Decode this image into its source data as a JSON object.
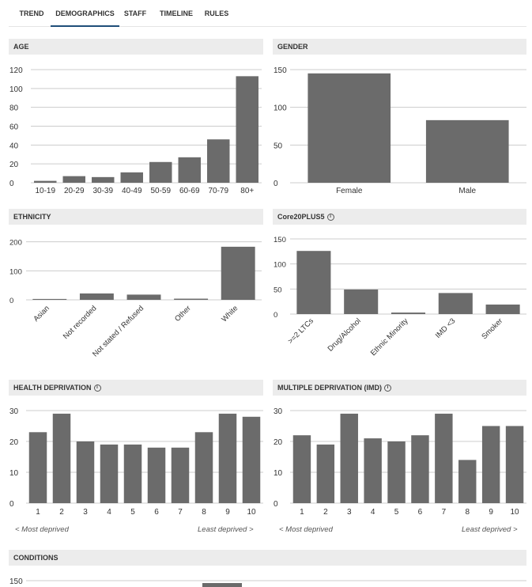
{
  "tabs": [
    {
      "label": "TREND",
      "active": false
    },
    {
      "label": "DEMOGRAPHICS",
      "active": true
    },
    {
      "label": "STAFF",
      "active": false
    },
    {
      "label": "TIMELINE",
      "active": false
    },
    {
      "label": "RULES",
      "active": false
    }
  ],
  "sections": {
    "age": "AGE",
    "gender": "GENDER",
    "ethnicity": "ETHNICITY",
    "core20": "Core20PLUS5",
    "health": "HEALTH DEPRIVATION",
    "imd": "MULTIPLE DEPRIVATION (IMD)",
    "conditions": "CONDITIONS"
  },
  "info_icon_glyph": "i",
  "notes": {
    "most_deprived": "< Most deprived",
    "least_deprived": "Least deprived >"
  },
  "colors": {
    "bar": "#6b6b6b",
    "axis": "#cccccc",
    "text": "#333333"
  },
  "chart_data": [
    {
      "id": "age",
      "type": "bar",
      "categories": [
        "10-19",
        "20-29",
        "30-39",
        "40-49",
        "50-59",
        "60-69",
        "70-79",
        "80+"
      ],
      "values": [
        2,
        7,
        6,
        11,
        22,
        27,
        46,
        113
      ],
      "ylim": [
        0,
        120
      ],
      "yticks": [
        0,
        20,
        40,
        60,
        80,
        100,
        120
      ],
      "xlabel_rotate": false
    },
    {
      "id": "gender",
      "type": "bar",
      "categories": [
        "Female",
        "Male"
      ],
      "values": [
        145,
        83
      ],
      "ylim": [
        0,
        150
      ],
      "yticks": [
        0,
        50,
        100,
        150
      ],
      "xlabel_rotate": false
    },
    {
      "id": "ethnicity",
      "type": "bar",
      "categories": [
        "Asian",
        "Not recorded",
        "Not stated / Refused",
        "Other",
        "White"
      ],
      "values": [
        3,
        22,
        18,
        4,
        183
      ],
      "ylim": [
        0,
        210
      ],
      "yticks": [
        0,
        100,
        200
      ],
      "xlabel_rotate": true
    },
    {
      "id": "core20",
      "type": "bar",
      "categories": [
        ">=2 LTCs",
        "Drug/Alcohol",
        "Ethnic Minority",
        "IMD <3",
        "Smoker"
      ],
      "values": [
        126,
        49,
        3,
        42,
        19
      ],
      "ylim": [
        0,
        150
      ],
      "yticks": [
        0,
        50,
        100,
        150
      ],
      "xlabel_rotate": true
    },
    {
      "id": "health",
      "type": "bar",
      "categories": [
        "1",
        "2",
        "3",
        "4",
        "5",
        "6",
        "7",
        "8",
        "9",
        "10"
      ],
      "values": [
        23,
        29,
        20,
        19,
        19,
        18,
        18,
        23,
        29,
        28
      ],
      "ylim": [
        0,
        30
      ],
      "yticks": [
        0,
        10,
        20,
        30
      ],
      "xlabel_rotate": false
    },
    {
      "id": "imd",
      "type": "bar",
      "categories": [
        "1",
        "2",
        "3",
        "4",
        "5",
        "6",
        "7",
        "8",
        "9",
        "10"
      ],
      "values": [
        22,
        19,
        29,
        21,
        20,
        22,
        29,
        14,
        25,
        25
      ],
      "ylim": [
        0,
        30
      ],
      "yticks": [
        0,
        10,
        20,
        30
      ],
      "xlabel_rotate": false
    },
    {
      "id": "conditions",
      "type": "bar",
      "categories": [],
      "values": [],
      "ylim": [
        0,
        150
      ],
      "yticks": [
        150
      ],
      "xlabel_rotate": false
    }
  ]
}
